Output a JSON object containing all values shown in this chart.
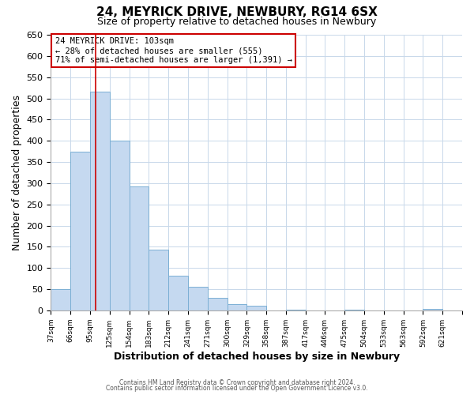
{
  "title": "24, MEYRICK DRIVE, NEWBURY, RG14 6SX",
  "subtitle": "Size of property relative to detached houses in Newbury",
  "bar_values": [
    50,
    375,
    515,
    400,
    292,
    143,
    82,
    55,
    30,
    14,
    11,
    0,
    2,
    0,
    0,
    2,
    0,
    0,
    0,
    3,
    0
  ],
  "bin_labels": [
    "37sqm",
    "66sqm",
    "95sqm",
    "125sqm",
    "154sqm",
    "183sqm",
    "212sqm",
    "241sqm",
    "271sqm",
    "300sqm",
    "329sqm",
    "358sqm",
    "387sqm",
    "417sqm",
    "446sqm",
    "475sqm",
    "504sqm",
    "533sqm",
    "563sqm",
    "592sqm",
    "621sqm"
  ],
  "xlabel": "Distribution of detached houses by size in Newbury",
  "ylabel": "Number of detached properties",
  "ylim": [
    0,
    650
  ],
  "yticks": [
    0,
    50,
    100,
    150,
    200,
    250,
    300,
    350,
    400,
    450,
    500,
    550,
    600,
    650
  ],
  "bar_color": "#c5d9f0",
  "bar_edge_color": "#7bafd4",
  "vline_color": "#cc0000",
  "annotation_title": "24 MEYRICK DRIVE: 103sqm",
  "annotation_line1": "← 28% of detached houses are smaller (555)",
  "annotation_line2": "71% of semi-detached houses are larger (1,391) →",
  "annotation_box_color": "#ffffff",
  "annotation_box_edge": "#cc0000",
  "footer1": "Contains HM Land Registry data © Crown copyright and database right 2024.",
  "footer2": "Contains public sector information licensed under the Open Government Licence v3.0.",
  "bg_color": "#ffffff",
  "grid_color": "#c8d8ea"
}
